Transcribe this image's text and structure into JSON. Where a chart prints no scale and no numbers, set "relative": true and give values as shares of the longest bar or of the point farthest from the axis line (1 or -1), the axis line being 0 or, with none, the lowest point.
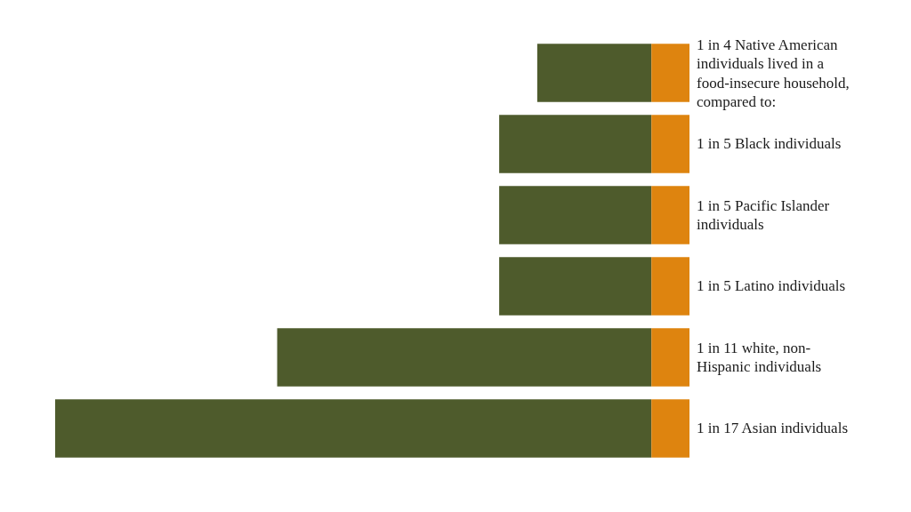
{
  "chart_data": {
    "type": "bar",
    "orientation": "horizontal",
    "stacked": true,
    "relative": true,
    "categories": [
      null,
      "1 in 5 Black individuals",
      "1 in 5 Pacific Islander individuals",
      "1 in 5 Latino individuals",
      "1 in 11 white, non-Hispanic individuals",
      "1 in 17 Asian individuals"
    ],
    "annotations": [
      "1 in 4 Native American individuals lived in a food-insecure household, compared to:"
    ],
    "series": [
      {
        "color": "#de840f",
        "values": [
          0.06,
          0.06,
          0.06,
          0.06,
          0.06,
          0.06
        ]
      },
      {
        "color": "#4e5b2c",
        "values": [
          0.18,
          0.24,
          0.24,
          0.24,
          0.59,
          0.94
        ]
      }
    ]
  }
}
